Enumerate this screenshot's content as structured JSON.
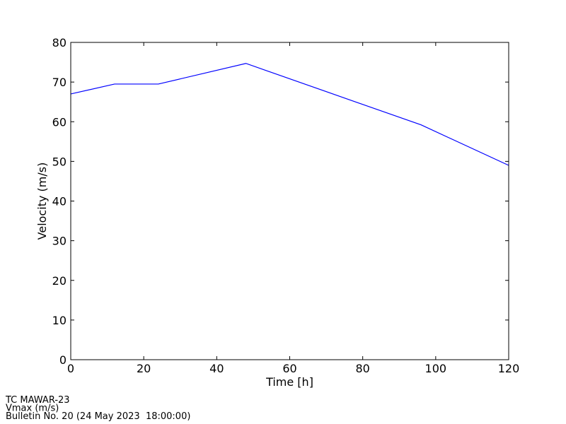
{
  "chart_data": {
    "type": "line",
    "xlabel": "Time [h]",
    "ylabel": "Velocity (m/s)",
    "x": [
      0,
      12,
      24,
      48,
      96,
      120
    ],
    "series": [
      {
        "name": "Vmax",
        "color": "#0000ff",
        "values": [
          67.0,
          69.5,
          69.5,
          74.7,
          59.2,
          49.0
        ]
      }
    ],
    "xlim": [
      0,
      120
    ],
    "xticks": [
      0,
      20,
      40,
      60,
      80,
      100,
      120
    ],
    "ylim": [
      0,
      80
    ],
    "yticks": [
      0,
      10,
      20,
      30,
      40,
      50,
      60,
      70,
      80
    ],
    "grid": false,
    "annotations": [
      "TC MAWAR-23",
      "Vmax (m/s)",
      "Bulletin No. 20 (24 May 2023  18:00:00)"
    ]
  }
}
